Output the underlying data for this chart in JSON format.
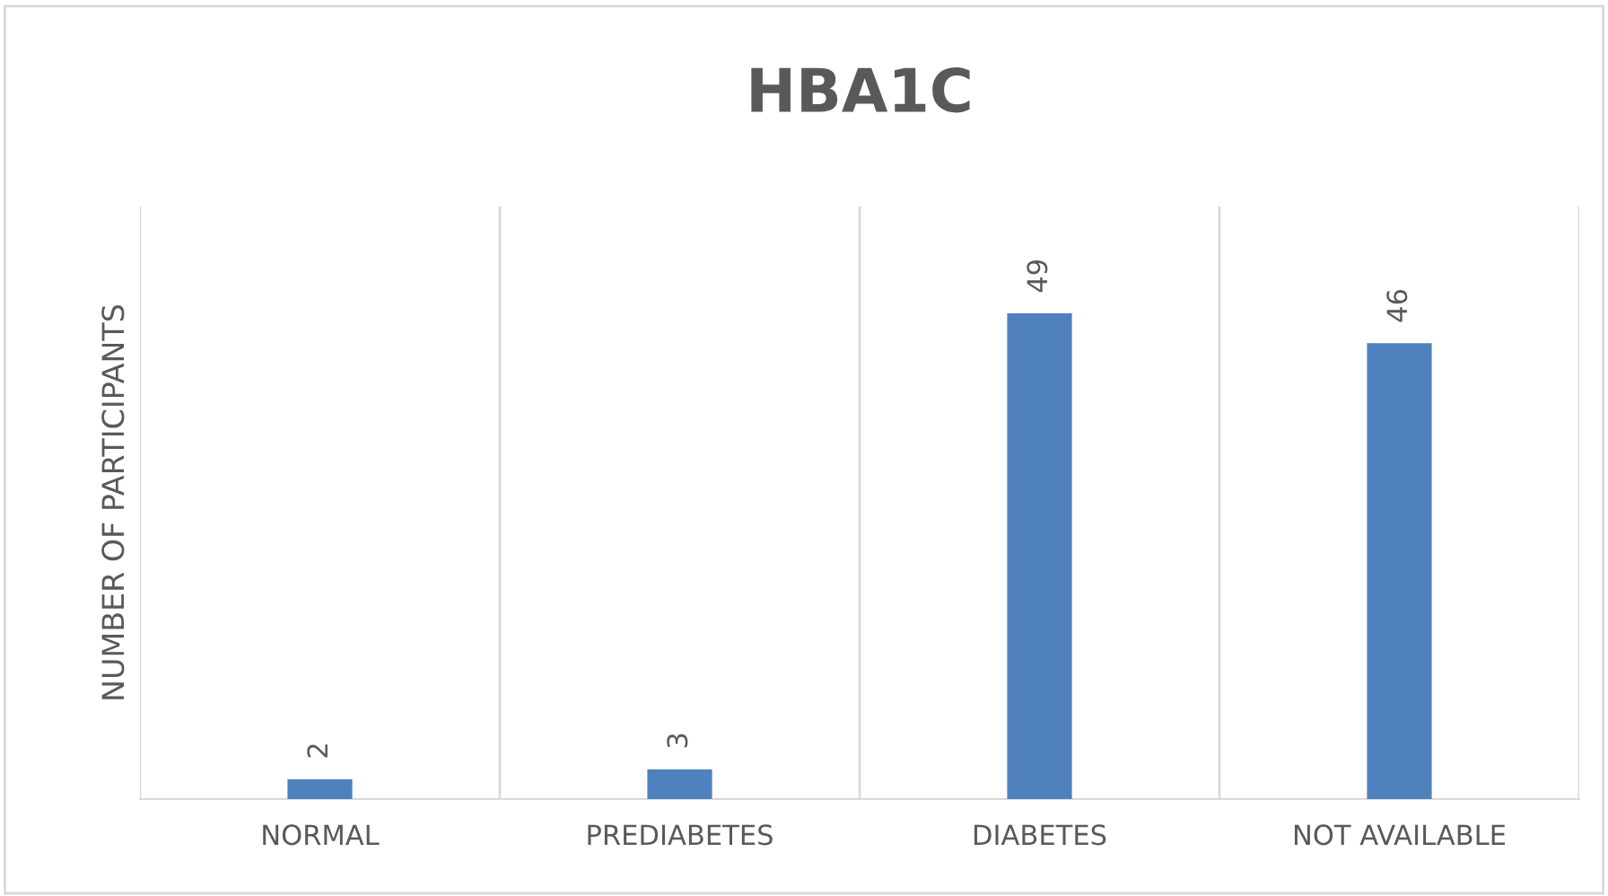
{
  "chart_data": {
    "type": "bar",
    "title": "HBA1C",
    "ylabel": "NUMBER OF PARTICIPANTS",
    "categories": [
      "NORMAL",
      "PREDIABETES",
      "DIABETES",
      "NOT AVAILABLE"
    ],
    "values": [
      2,
      3,
      49,
      46
    ],
    "color": "#4f81bd",
    "data_labels": true,
    "grid": "x",
    "legend": false
  }
}
